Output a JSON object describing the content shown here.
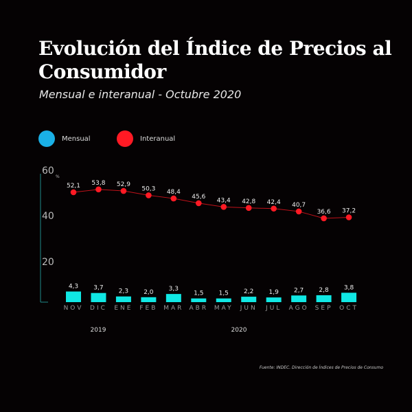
{
  "header": {
    "title": "Evolución del Índice de Precios al Consumidor",
    "subtitle": "Mensual e interanual - Octubre 2020"
  },
  "legend": [
    {
      "label": "Mensual",
      "color": "#1ab0e6"
    },
    {
      "label": "Interanual",
      "color": "#ff1a24"
    }
  ],
  "source": "Fuente: INDEC. Dirección de Índices de Precios de Consumo",
  "chart_data": {
    "type": "bar+line",
    "categories": [
      "NOV",
      "DIC",
      "ENE",
      "FEB",
      "MAR",
      "ABR",
      "MAY",
      "JUN",
      "JUL",
      "AGO",
      "SEP",
      "OCT"
    ],
    "years": [
      {
        "label": "2019"
      },
      {
        "label": "2020"
      }
    ],
    "yunit": "%",
    "yticks": [
      "60",
      "40",
      "20"
    ],
    "ylim": [
      0,
      60
    ],
    "series": [
      {
        "name": "Mensual",
        "type": "bar",
        "color": "#10e8e4",
        "values": [
          4.3,
          3.7,
          2.3,
          2.0,
          3.3,
          1.5,
          1.5,
          2.2,
          1.9,
          2.7,
          2.8,
          3.8
        ],
        "labels": [
          "4,3",
          "3,7",
          "2,3",
          "2,0",
          "3,3",
          "1,5",
          "1,5",
          "2,2",
          "1,9",
          "2,7",
          "2,8",
          "3,8"
        ]
      },
      {
        "name": "Interanual",
        "type": "line",
        "color": "#ff1a24",
        "values": [
          52.1,
          53.8,
          52.9,
          50.3,
          48.4,
          45.6,
          43.4,
          42.8,
          42.4,
          40.7,
          36.6,
          37.2
        ],
        "labels": [
          "52,1",
          "53,8",
          "52,9",
          "50,3",
          "48,4",
          "45,6",
          "43,4",
          "42,8",
          "42,4",
          "40,7",
          "36,6",
          "37,2"
        ]
      }
    ]
  }
}
